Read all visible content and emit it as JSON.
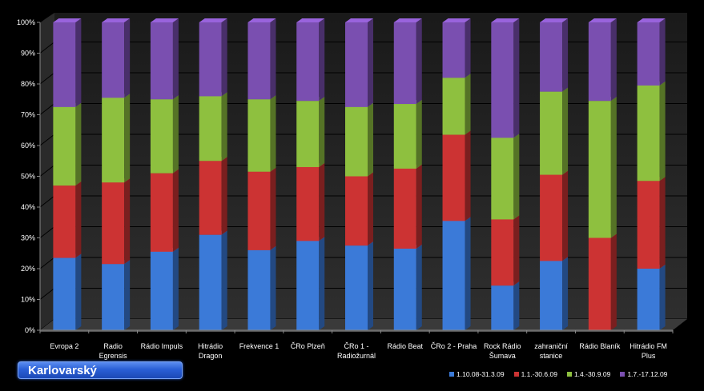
{
  "region_label": "Karlovarský",
  "chart_data": {
    "type": "bar",
    "stacked": "percent",
    "title": "",
    "xlabel": "",
    "ylabel": "",
    "ylim": [
      0,
      100
    ],
    "ytick_labels": [
      "0%",
      "10%",
      "20%",
      "30%",
      "40%",
      "50%",
      "60%",
      "70%",
      "80%",
      "90%",
      "100%"
    ],
    "categories": [
      [
        "Evropa 2"
      ],
      [
        "Radio",
        "Egrensis"
      ],
      [
        "Rádio Impuls"
      ],
      [
        "Hitrádio",
        "Dragon"
      ],
      [
        "Frekvence 1"
      ],
      [
        "ČRo Plzeň"
      ],
      [
        "ČRo 1 -",
        "Radiožurnál"
      ],
      [
        "Rádio Beat"
      ],
      [
        "ČRo 2 - Praha"
      ],
      [
        "Rock Rádio",
        "Šumava"
      ],
      [
        "zahraniční",
        "stanice"
      ],
      [
        "Rádio Blaník"
      ],
      [
        "Hitrádio FM",
        "Plus"
      ]
    ],
    "series": [
      {
        "name": "1.10.08-31.3.09",
        "color": "#3b7ad8",
        "values": [
          23.5,
          21.5,
          25.5,
          31,
          26,
          29,
          27.5,
          26.5,
          35.5,
          14.5,
          22.5,
          0,
          20
        ]
      },
      {
        "name": "1.1.-30.6.09",
        "color": "#cc3333",
        "values": [
          23.5,
          26.5,
          25.5,
          24,
          25.5,
          24,
          22.5,
          26,
          28,
          21.5,
          28,
          30,
          28.5
        ]
      },
      {
        "name": "1.4.-30.9.09",
        "color": "#8ec03f",
        "values": [
          25.5,
          27.5,
          24,
          21,
          23.5,
          21.5,
          22.5,
          21,
          18.5,
          26.5,
          27,
          44.5,
          31
        ]
      },
      {
        "name": "1.7.-17.12.09",
        "color": "#7a4fb0",
        "values": [
          27.5,
          24.5,
          25,
          24,
          25,
          25.5,
          27.5,
          26.5,
          18,
          37.5,
          22.5,
          25.5,
          20.5
        ]
      }
    ],
    "legend_position": "bottom-right",
    "grid": true
  }
}
